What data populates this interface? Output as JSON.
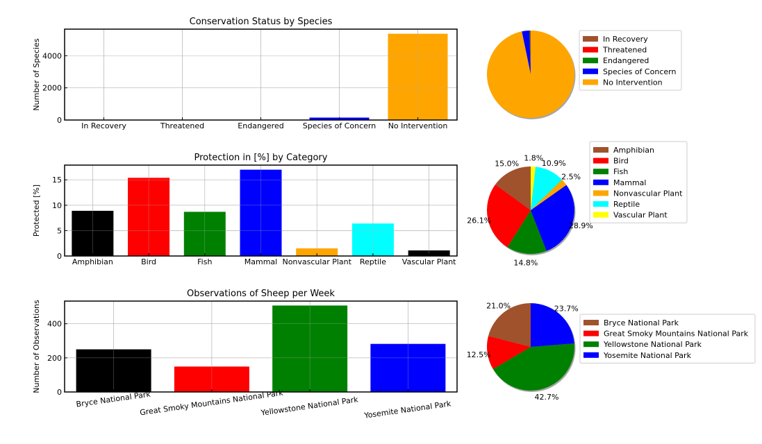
{
  "colors": {
    "axis": "#000000",
    "grid": "#b0b0b0",
    "legend_border": "#cccccc"
  },
  "chart_data": [
    {
      "type": "bar",
      "title": "Conservation Status by Species",
      "ylabel": "Number of Species",
      "xlabel": "",
      "categories": [
        "In Recovery",
        "Threatened",
        "Endangered",
        "Species of Concern",
        "No Intervention"
      ],
      "values": [
        4,
        10,
        15,
        151,
        5363
      ],
      "colors": [
        "#a0522d",
        "#ff0000",
        "#008000",
        "#0000ff",
        "#ffa500"
      ],
      "ylim": [
        0,
        5650
      ],
      "yticks": [
        0,
        2000,
        4000
      ],
      "grid": true,
      "xtick_rotation": 0
    },
    {
      "type": "pie",
      "slices": [
        4,
        10,
        15,
        151,
        5363
      ],
      "labels": [
        "In Recovery",
        "Threatened",
        "Endangered",
        "Species of Concern",
        "No Intervention"
      ],
      "colors": [
        "#a0522d",
        "#ff0000",
        "#008000",
        "#0000ff",
        "#ffa500"
      ],
      "show_percent": false,
      "legend": "right"
    },
    {
      "type": "bar",
      "title": "Protection in [%] by Category",
      "ylabel": "Protected [%]",
      "xlabel": "",
      "categories": [
        "Amphibian",
        "Bird",
        "Fish",
        "Mammal",
        "Nonvascular Plant",
        "Reptile",
        "Vascular Plant"
      ],
      "values": [
        8.9,
        15.4,
        8.7,
        17.0,
        1.5,
        6.4,
        1.1
      ],
      "colors": [
        "#000000",
        "#ff0000",
        "#008000",
        "#0000ff",
        "#ffa500",
        "#00ffff",
        "#000000"
      ],
      "ylim": [
        0,
        17.9
      ],
      "yticks": [
        0,
        5,
        10,
        15
      ],
      "grid": true,
      "xtick_rotation": 0
    },
    {
      "type": "pie",
      "slices": [
        15.0,
        26.1,
        14.8,
        28.9,
        2.5,
        10.9,
        1.8
      ],
      "labels": [
        "Amphibian",
        "Bird",
        "Fish",
        "Mammal",
        "Nonvascular Plant",
        "Reptile",
        "Vascular Plant"
      ],
      "percent_labels": [
        "15.0%",
        "26.1%",
        "14.8%",
        "28.9%",
        "2.5%",
        "10.9%",
        "1.8%"
      ],
      "colors": [
        "#a0522d",
        "#ff0000",
        "#008000",
        "#0000ff",
        "#ffa500",
        "#00ffff",
        "#ffff00"
      ],
      "show_percent": true,
      "legend": "right"
    },
    {
      "type": "bar",
      "title": "Observations of Sheep per Week",
      "ylabel": "Number of Observations",
      "xlabel": "",
      "categories": [
        "Bryce National Park",
        "Great Smoky Mountains National Park",
        "Yellowstone National Park",
        "Yosemite National Park"
      ],
      "values": [
        250,
        149,
        507,
        282
      ],
      "colors": [
        "#000000",
        "#ff0000",
        "#008000",
        "#0000ff"
      ],
      "ylim": [
        0,
        533
      ],
      "yticks": [
        0,
        200,
        400
      ],
      "grid": true,
      "xtick_rotation": -8
    },
    {
      "type": "pie",
      "slices": [
        21.0,
        12.5,
        42.7,
        23.7
      ],
      "labels": [
        "Bryce National Park",
        "Great Smoky Mountains National Park",
        "Yellowstone National Park",
        "Yosemite National Park"
      ],
      "percent_labels": [
        "21.0%",
        "12.5%",
        "42.7%",
        "23.7%"
      ],
      "colors": [
        "#a0522d",
        "#ff0000",
        "#008000",
        "#0000ff"
      ],
      "show_percent": true,
      "legend": "right"
    }
  ]
}
